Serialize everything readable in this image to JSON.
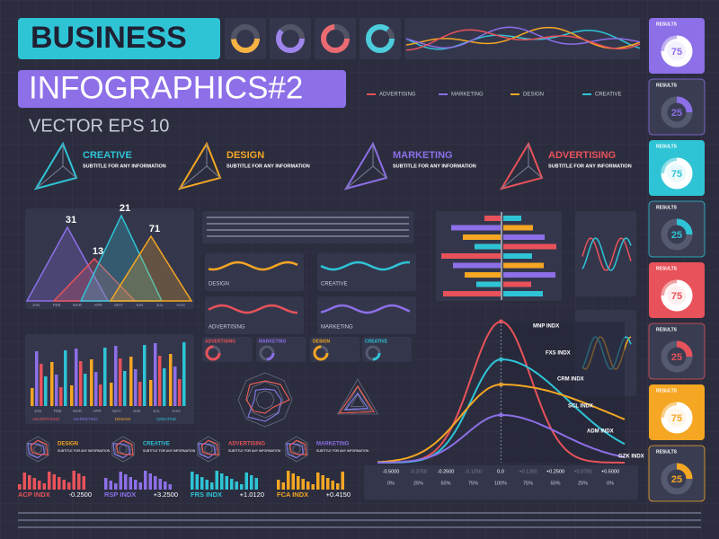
{
  "header": {
    "title": "BUSINESS",
    "subtitle": "INFOGRAPHICS#2",
    "tagline": "VECTOR EPS 10"
  },
  "categories": [
    {
      "name": "CREATIVE",
      "subtitle": "SUBTITLE FOR ANY INFORMATION",
      "color": "#2ec4d6"
    },
    {
      "name": "DESIGN",
      "subtitle": "SUBTITLE FOR ANY INFORMATION",
      "color": "#f5a623"
    },
    {
      "name": "MARKETING",
      "subtitle": "SUBTITLE FOR ANY INFORMATION",
      "color": "#8d6fe8"
    },
    {
      "name": "ADVERTISING",
      "subtitle": "SUBTITLE FOR ANY INFORMATION",
      "color": "#e8525a"
    }
  ],
  "results": {
    "label": "RESULTS",
    "cards": [
      {
        "value": 75,
        "color": "#8d6fe8",
        "filled": true
      },
      {
        "value": 25,
        "color": "#8d6fe8",
        "filled": false
      },
      {
        "value": 75,
        "color": "#2ec4d6",
        "filled": true
      },
      {
        "value": 25,
        "color": "#2ec4d6",
        "filled": false
      },
      {
        "value": 75,
        "color": "#e8525a",
        "filled": true
      },
      {
        "value": 25,
        "color": "#e8525a",
        "filled": false
      },
      {
        "value": 75,
        "color": "#f5a623",
        "filled": true
      },
      {
        "value": 25,
        "color": "#f5a623",
        "filled": false
      }
    ]
  },
  "peaks": {
    "labels": [
      31,
      13,
      21,
      71
    ],
    "months": [
      "JAN",
      "FEB",
      "MAR",
      "APR",
      "MAY",
      "JUN",
      "JUL",
      "AUG"
    ]
  },
  "bell": {
    "labels": [
      "MNP INDX",
      "FXS INDX",
      "CRM INDX",
      "SCL INDX",
      "ADM INDX",
      "GZK INDX"
    ],
    "xticks": [
      "-0.5000",
      "-0.3750",
      "-0.2500",
      "-0.1250",
      "0.0",
      "+0.1250",
      "+0.2500",
      "+0.3750",
      "+0.5000"
    ],
    "percents": [
      "0%",
      "25%",
      "50%",
      "75%",
      "100%",
      "75%",
      "50%",
      "25%",
      "0%"
    ]
  },
  "indices": [
    {
      "name": "ACP INDX",
      "value": "-0.2500",
      "color": "#e8525a"
    },
    {
      "name": "RSP INDX",
      "value": "+3.2500",
      "color": "#8d6fe8"
    },
    {
      "name": "FRS INDX",
      "value": "+1.0120",
      "color": "#2ec4d6"
    },
    {
      "name": "FCA INDX",
      "value": "+0.4150",
      "color": "#f5a623"
    }
  ]
}
